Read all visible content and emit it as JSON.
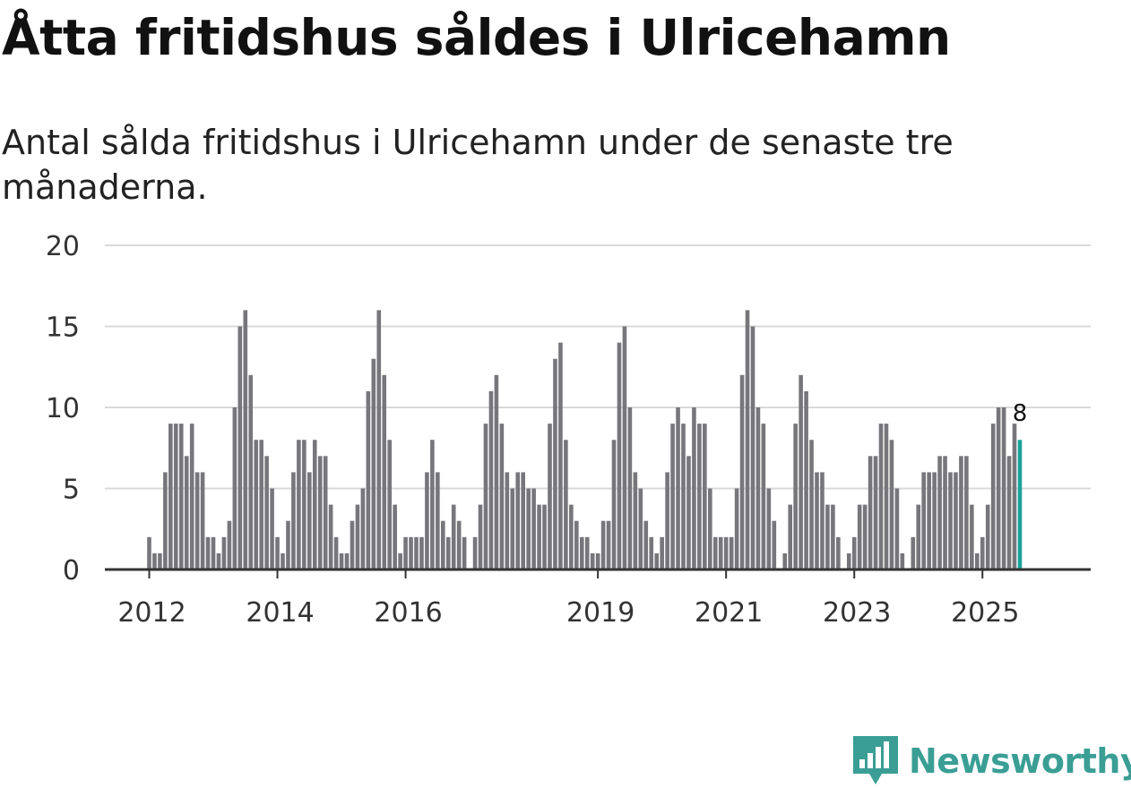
{
  "title": "Åtta fritidshus såldes i Ulricehamn",
  "subtitle": "Antal sålda fritidshus i Ulricehamn under de senaste tre månaderna.",
  "logo_text": "Newsworthy",
  "colors": {
    "bar": "#76767b",
    "highlight": "#1aa39a",
    "grid": "#d9d9d9",
    "axis": "#333333",
    "logo": "#3a9e95"
  },
  "chart_data": {
    "type": "bar",
    "title": "Åtta fritidshus såldes i Ulricehamn",
    "subtitle": "Antal sålda fritidshus i Ulricehamn under de senaste tre månaderna.",
    "xlabel": "",
    "ylabel": "",
    "ylim": [
      0,
      20
    ],
    "yticks": [
      0,
      5,
      10,
      15,
      20
    ],
    "xticks": [
      {
        "label": "2012",
        "index": 0
      },
      {
        "label": "2014",
        "index": 24
      },
      {
        "label": "2016",
        "index": 48
      },
      {
        "label": "2019",
        "index": 84
      },
      {
        "label": "2021",
        "index": 108
      },
      {
        "label": "2023",
        "index": 132
      },
      {
        "label": "2025",
        "index": 156
      }
    ],
    "grid": true,
    "highlight_last": true,
    "last_label": "8",
    "values": [
      2,
      1,
      1,
      6,
      9,
      9,
      9,
      7,
      9,
      6,
      6,
      2,
      2,
      1,
      2,
      3,
      10,
      15,
      16,
      12,
      8,
      8,
      7,
      5,
      2,
      1,
      3,
      6,
      8,
      8,
      6,
      8,
      7,
      7,
      4,
      2,
      1,
      1,
      3,
      4,
      5,
      11,
      13,
      16,
      12,
      8,
      4,
      1,
      2,
      2,
      2,
      2,
      6,
      8,
      6,
      3,
      2,
      4,
      3,
      2,
      0,
      2,
      4,
      9,
      11,
      12,
      9,
      6,
      5,
      6,
      6,
      5,
      5,
      4,
      4,
      9,
      13,
      14,
      8,
      4,
      3,
      2,
      2,
      1,
      1,
      3,
      3,
      8,
      14,
      15,
      10,
      6,
      5,
      3,
      2,
      1,
      2,
      6,
      9,
      10,
      9,
      7,
      10,
      9,
      9,
      5,
      2,
      2,
      2,
      2,
      5,
      12,
      16,
      15,
      10,
      9,
      5,
      3,
      0,
      1,
      4,
      9,
      12,
      11,
      8,
      6,
      6,
      4,
      4,
      2,
      0,
      1,
      2,
      4,
      4,
      7,
      7,
      9,
      9,
      8,
      5,
      1,
      0,
      2,
      4,
      6,
      6,
      6,
      7,
      7,
      6,
      6,
      7,
      7,
      4,
      1,
      2,
      4,
      9,
      10,
      10,
      7,
      9,
      8
    ]
  }
}
